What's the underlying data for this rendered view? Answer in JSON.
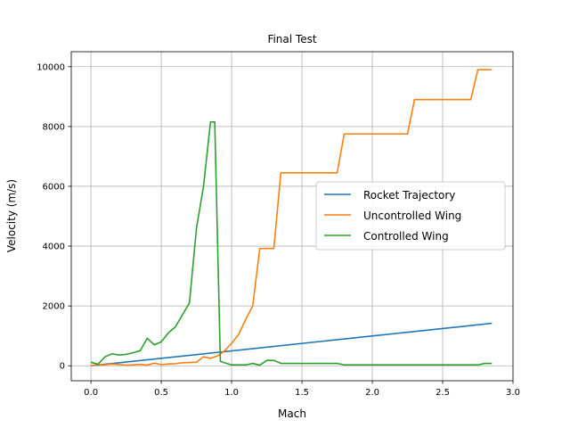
{
  "chart_data": {
    "type": "line",
    "title": "Final Test",
    "xlabel": "Mach",
    "ylabel": "Velocity (m/s)",
    "xlim": [
      -0.14,
      3.0
    ],
    "ylim": [
      -500,
      10500
    ],
    "xticks": [
      0.0,
      0.5,
      1.0,
      1.5,
      2.0,
      2.5,
      3.0
    ],
    "xtick_labels": [
      "0.0",
      "0.5",
      "1.0",
      "1.5",
      "2.0",
      "2.5",
      "3.0"
    ],
    "yticks": [
      0,
      2000,
      4000,
      6000,
      8000,
      10000
    ],
    "ytick_labels": [
      "0",
      "2000",
      "4000",
      "6000",
      "8000",
      "10000"
    ],
    "grid": true,
    "legend_position": "center-right",
    "series": [
      {
        "name": "Rocket Trajectory",
        "color": "#1f77b4",
        "x": [
          0.0,
          2.85
        ],
        "y": [
          0,
          1420
        ]
      },
      {
        "name": "Uncontrolled Wing",
        "color": "#ff7f0e",
        "x": [
          0.0,
          0.05,
          0.1,
          0.15,
          0.2,
          0.25,
          0.3,
          0.35,
          0.4,
          0.45,
          0.5,
          0.55,
          0.6,
          0.65,
          0.7,
          0.75,
          0.8,
          0.85,
          0.9,
          0.95,
          1.0,
          1.05,
          1.1,
          1.15,
          1.2,
          1.25,
          1.3,
          1.35,
          1.4,
          1.45,
          1.5,
          1.55,
          1.6,
          1.65,
          1.7,
          1.75,
          1.8,
          1.85,
          1.9,
          1.95,
          2.0,
          2.05,
          2.1,
          2.15,
          2.2,
          2.25,
          2.3,
          2.35,
          2.4,
          2.45,
          2.5,
          2.55,
          2.6,
          2.65,
          2.7,
          2.75,
          2.8,
          2.85
        ],
        "y": [
          0,
          40,
          30,
          60,
          40,
          20,
          30,
          50,
          20,
          90,
          40,
          60,
          70,
          100,
          110,
          120,
          300,
          250,
          330,
          500,
          750,
          1050,
          1550,
          2000,
          3920,
          3920,
          3920,
          6450,
          6450,
          6450,
          6450,
          6450,
          6450,
          6450,
          6450,
          6450,
          7750,
          7750,
          7750,
          7750,
          7750,
          7750,
          7750,
          7750,
          7750,
          7750,
          8900,
          8900,
          8900,
          8900,
          8900,
          8900,
          8900,
          8900,
          8900,
          9900,
          9900,
          9900
        ]
      },
      {
        "name": "Controlled Wing",
        "color": "#2ca02c",
        "x": [
          0.0,
          0.05,
          0.1,
          0.15,
          0.2,
          0.25,
          0.3,
          0.35,
          0.4,
          0.45,
          0.5,
          0.55,
          0.6,
          0.65,
          0.7,
          0.75,
          0.8,
          0.85,
          0.88,
          0.92,
          0.95,
          1.0,
          1.05,
          1.1,
          1.15,
          1.2,
          1.25,
          1.3,
          1.35,
          1.4,
          1.5,
          1.6,
          1.7,
          1.75,
          1.8,
          1.9,
          2.0,
          2.2,
          2.4,
          2.6,
          2.7,
          2.75,
          2.8,
          2.85
        ],
        "y": [
          120,
          50,
          300,
          400,
          360,
          380,
          440,
          500,
          920,
          700,
          800,
          1100,
          1300,
          1700,
          2100,
          4600,
          6000,
          8150,
          8150,
          150,
          100,
          30,
          30,
          30,
          80,
          20,
          180,
          180,
          80,
          80,
          80,
          80,
          80,
          80,
          30,
          30,
          30,
          30,
          30,
          30,
          30,
          30,
          80,
          80
        ]
      }
    ]
  }
}
